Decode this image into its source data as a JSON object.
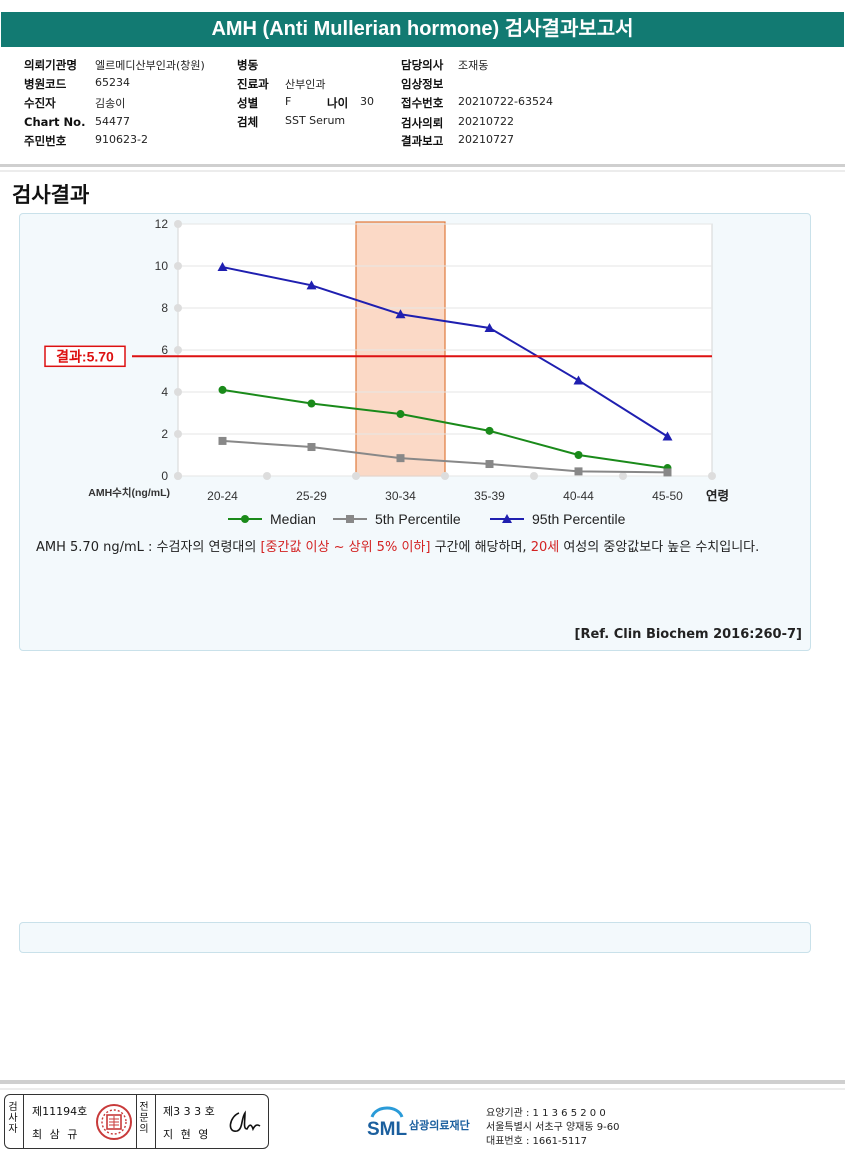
{
  "title": "AMH (Anti Mullerian hormone) 검사결과보고서",
  "info": {
    "requesting_org": {
      "label": "의뢰기관명",
      "value": "엘르메디산부인과(창원)"
    },
    "hospital_code": {
      "label": "병원코드",
      "value": "65234"
    },
    "patient": {
      "label": "수진자",
      "value": "김송이"
    },
    "chart_no": {
      "label": "Chart No.",
      "value": "54477"
    },
    "resident_no": {
      "label": "주민번호",
      "value": "910623-2"
    },
    "ward": {
      "label": "병동",
      "value": ""
    },
    "department": {
      "label": "진료과",
      "value": "산부인과"
    },
    "sex": {
      "label": "성별",
      "value": "F"
    },
    "age": {
      "label": "나이",
      "value": "30"
    },
    "specimen": {
      "label": "검체",
      "value": "SST Serum"
    },
    "doctor": {
      "label": "담당의사",
      "value": "조재동"
    },
    "clinical_info": {
      "label": "임상정보",
      "value": ""
    },
    "receipt_no": {
      "label": "접수번호",
      "value": "20210722-63524"
    },
    "test_request": {
      "label": "검사의뢰",
      "value": "20210722"
    },
    "result_report": {
      "label": "결과보고",
      "value": "20210727"
    }
  },
  "section_title": "검사결과",
  "chart_data": {
    "type": "line",
    "categories": [
      "20-24",
      "25-29",
      "30-34",
      "35-39",
      "40-44",
      "45-50"
    ],
    "xlabel": "연령",
    "ylabel": "AMH수치(ng/mL)",
    "ylim": [
      0,
      12
    ],
    "yticks": [
      0,
      2,
      4,
      6,
      8,
      10,
      12
    ],
    "series": [
      {
        "name": "Median",
        "values": [
          4.1,
          3.45,
          2.95,
          2.15,
          1.0,
          0.38
        ],
        "color": "#1a8a1a",
        "marker": "circle"
      },
      {
        "name": "5th Percentile",
        "values": [
          1.67,
          1.38,
          0.85,
          0.57,
          0.22,
          0.17
        ],
        "color": "#888888",
        "marker": "square"
      },
      {
        "name": "95th Percentile",
        "values": [
          9.95,
          9.08,
          7.7,
          7.05,
          4.55,
          1.88
        ],
        "color": "#1f1fb0",
        "marker": "triangle"
      }
    ],
    "result_line": {
      "label": "결과:5.70",
      "value": 5.7,
      "color": "#dd1111"
    },
    "highlight_band": {
      "category": "30-34",
      "color": "#fbd9c6"
    },
    "legend_position": "bottom",
    "grid": "horizontal"
  },
  "description": {
    "part1": "AMH  5.70 ng/mL : 수검자의 연령대의 ",
    "red1": "[중간값 이상 ~ 상위 5% 이하]",
    "part2": "  구간에 해당하며, ",
    "red2": "20세",
    "part3": " 여성의 중앙값보다 높은 수치입니다."
  },
  "reference": "[Ref. Clin Biochem 2016:260-7]",
  "footer": {
    "tester_label": "검사자",
    "tester_no": "제11194호",
    "tester_name": "최 삼 규",
    "doctor_label": "전문의",
    "doctor_no": "제3 3 3 호",
    "doctor_name": "지 현 영",
    "logo_text": "SML",
    "foundation": "삼광의료재단",
    "institution_code": "요양기관 : 1 1 3 6 5 2 0 0",
    "address": "서울특별시 서초구 양재동 9-60",
    "phone": "대표번호 : 1661-5117"
  }
}
